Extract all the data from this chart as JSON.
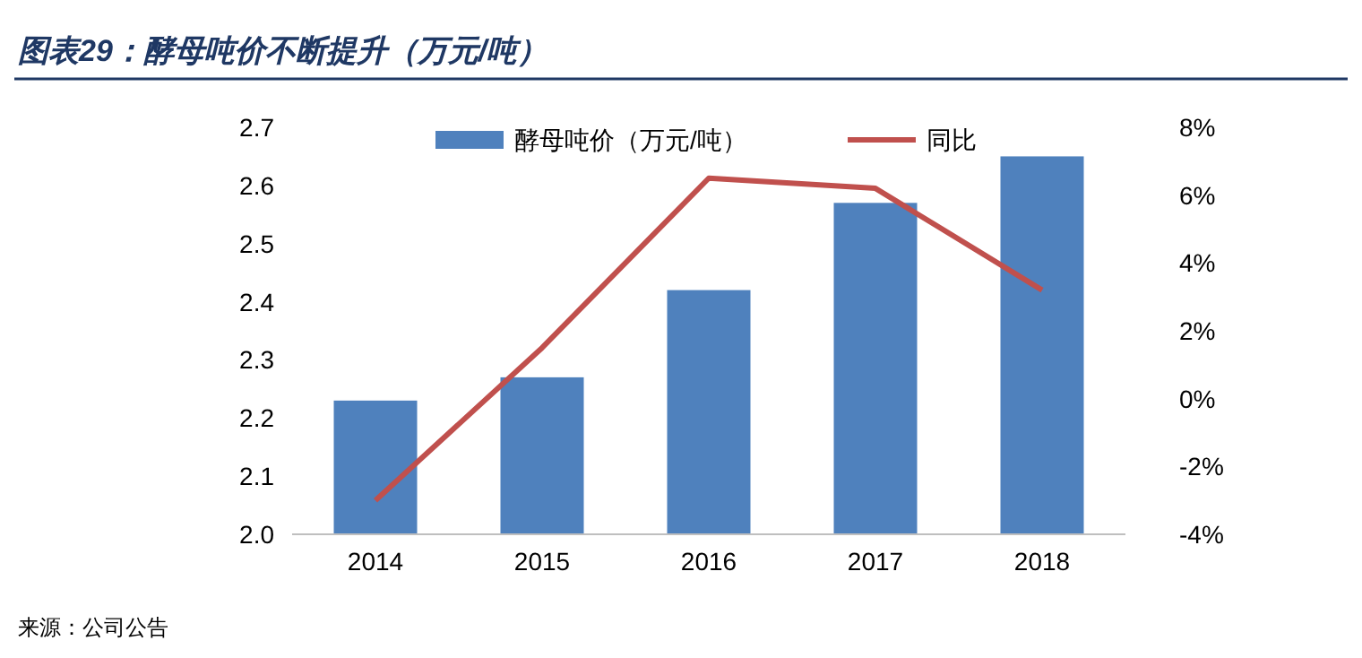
{
  "chart_data": {
    "type": "bar",
    "title": "图表29：酵母吨价不断提升（万元/吨）",
    "categories": [
      "2014",
      "2015",
      "2016",
      "2017",
      "2018"
    ],
    "series": [
      {
        "name": "酵母吨价（万元/吨）",
        "color": "#4f81bd",
        "values": [
          2.23,
          2.27,
          2.42,
          2.57,
          2.65
        ]
      },
      {
        "name": "同比",
        "type": "line",
        "axis": "y2",
        "color": "#c0504d",
        "values": [
          -3.0,
          1.5,
          6.5,
          6.2,
          3.2
        ]
      }
    ],
    "ylim": [
      2.0,
      2.7
    ],
    "yticks": [
      {
        "value": 2.0,
        "label": "2.0"
      },
      2.1,
      2.2,
      2.3,
      2.4,
      2.5,
      2.6,
      2.7
    ],
    "y2lim": [
      -4,
      8
    ],
    "y2ticks": [
      {
        "value": -4,
        "label": "-4%"
      },
      {
        "value": -2,
        "label": "-2%"
      },
      {
        "value": 0,
        "label": "0%"
      },
      {
        "value": 2,
        "label": "2%"
      },
      {
        "value": 4,
        "label": "4%"
      },
      {
        "value": 6,
        "label": "6%"
      },
      {
        "value": 8,
        "label": "8%"
      }
    ],
    "legend": "top",
    "grid": false,
    "marker": "none",
    "annotations": [
      "来源：公司公告"
    ]
  }
}
